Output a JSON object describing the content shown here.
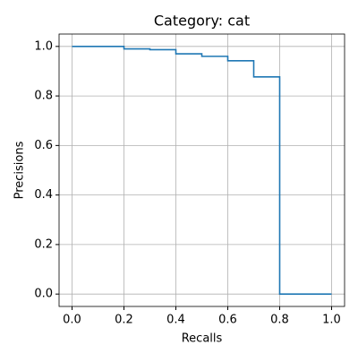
{
  "chart_data": {
    "type": "line",
    "title": "Category: cat",
    "xlabel": "Recalls",
    "ylabel": "Precisions",
    "drawstyle": "steps-post",
    "grid": true,
    "x": [
      0.0,
      0.1,
      0.2,
      0.3,
      0.4,
      0.5,
      0.6,
      0.7,
      0.8,
      0.9,
      1.0
    ],
    "series": [
      {
        "color": "#1f77b4",
        "values": [
          1.0,
          1.0,
          0.99,
          0.987,
          0.97,
          0.96,
          0.942,
          0.877,
          0,
          0,
          0
        ]
      }
    ],
    "xlim": [
      -0.05,
      1.05
    ],
    "ylim": [
      -0.05,
      1.05
    ],
    "xticks": [
      {
        "value": 0,
        "label": "0.0"
      },
      0.2,
      0.4,
      0.6,
      0.8,
      {
        "value": 1,
        "label": "1.0"
      }
    ],
    "yticks": [
      {
        "value": 0,
        "label": "0.0"
      },
      0.2,
      0.4,
      0.6,
      0.8,
      {
        "value": 1,
        "label": "1.0"
      }
    ]
  }
}
